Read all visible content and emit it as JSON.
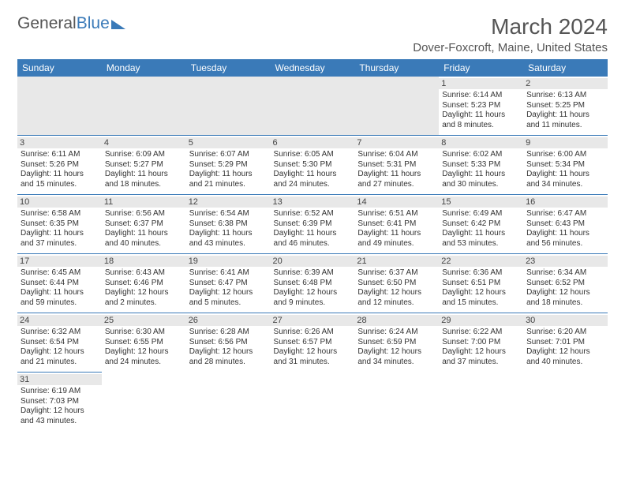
{
  "brand": {
    "part1": "General",
    "part2": "Blue"
  },
  "title": "March 2024",
  "subtitle": "Dover-Foxcroft, Maine, United States",
  "colors": {
    "header_bg": "#3a7ab8",
    "header_text": "#ffffff",
    "cell_border": "#3a7ab8",
    "daynum_bg": "#e8e8e8",
    "text": "#333333"
  },
  "typography": {
    "title_fontsize": 28,
    "subtitle_fontsize": 15,
    "dayheader_fontsize": 12,
    "daynum_fontsize": 11,
    "cell_fontsize": 10
  },
  "day_headers": [
    "Sunday",
    "Monday",
    "Tuesday",
    "Wednesday",
    "Thursday",
    "Friday",
    "Saturday"
  ],
  "weeks": [
    [
      {
        "empty": true
      },
      {
        "empty": true
      },
      {
        "empty": true
      },
      {
        "empty": true
      },
      {
        "empty": true
      },
      {
        "day": "1",
        "sunrise": "Sunrise: 6:14 AM",
        "sunset": "Sunset: 5:23 PM",
        "daylight": "Daylight: 11 hours and 8 minutes."
      },
      {
        "day": "2",
        "sunrise": "Sunrise: 6:13 AM",
        "sunset": "Sunset: 5:25 PM",
        "daylight": "Daylight: 11 hours and 11 minutes."
      }
    ],
    [
      {
        "day": "3",
        "sunrise": "Sunrise: 6:11 AM",
        "sunset": "Sunset: 5:26 PM",
        "daylight": "Daylight: 11 hours and 15 minutes."
      },
      {
        "day": "4",
        "sunrise": "Sunrise: 6:09 AM",
        "sunset": "Sunset: 5:27 PM",
        "daylight": "Daylight: 11 hours and 18 minutes."
      },
      {
        "day": "5",
        "sunrise": "Sunrise: 6:07 AM",
        "sunset": "Sunset: 5:29 PM",
        "daylight": "Daylight: 11 hours and 21 minutes."
      },
      {
        "day": "6",
        "sunrise": "Sunrise: 6:05 AM",
        "sunset": "Sunset: 5:30 PM",
        "daylight": "Daylight: 11 hours and 24 minutes."
      },
      {
        "day": "7",
        "sunrise": "Sunrise: 6:04 AM",
        "sunset": "Sunset: 5:31 PM",
        "daylight": "Daylight: 11 hours and 27 minutes."
      },
      {
        "day": "8",
        "sunrise": "Sunrise: 6:02 AM",
        "sunset": "Sunset: 5:33 PM",
        "daylight": "Daylight: 11 hours and 30 minutes."
      },
      {
        "day": "9",
        "sunrise": "Sunrise: 6:00 AM",
        "sunset": "Sunset: 5:34 PM",
        "daylight": "Daylight: 11 hours and 34 minutes."
      }
    ],
    [
      {
        "day": "10",
        "sunrise": "Sunrise: 6:58 AM",
        "sunset": "Sunset: 6:35 PM",
        "daylight": "Daylight: 11 hours and 37 minutes."
      },
      {
        "day": "11",
        "sunrise": "Sunrise: 6:56 AM",
        "sunset": "Sunset: 6:37 PM",
        "daylight": "Daylight: 11 hours and 40 minutes."
      },
      {
        "day": "12",
        "sunrise": "Sunrise: 6:54 AM",
        "sunset": "Sunset: 6:38 PM",
        "daylight": "Daylight: 11 hours and 43 minutes."
      },
      {
        "day": "13",
        "sunrise": "Sunrise: 6:52 AM",
        "sunset": "Sunset: 6:39 PM",
        "daylight": "Daylight: 11 hours and 46 minutes."
      },
      {
        "day": "14",
        "sunrise": "Sunrise: 6:51 AM",
        "sunset": "Sunset: 6:41 PM",
        "daylight": "Daylight: 11 hours and 49 minutes."
      },
      {
        "day": "15",
        "sunrise": "Sunrise: 6:49 AM",
        "sunset": "Sunset: 6:42 PM",
        "daylight": "Daylight: 11 hours and 53 minutes."
      },
      {
        "day": "16",
        "sunrise": "Sunrise: 6:47 AM",
        "sunset": "Sunset: 6:43 PM",
        "daylight": "Daylight: 11 hours and 56 minutes."
      }
    ],
    [
      {
        "day": "17",
        "sunrise": "Sunrise: 6:45 AM",
        "sunset": "Sunset: 6:44 PM",
        "daylight": "Daylight: 11 hours and 59 minutes."
      },
      {
        "day": "18",
        "sunrise": "Sunrise: 6:43 AM",
        "sunset": "Sunset: 6:46 PM",
        "daylight": "Daylight: 12 hours and 2 minutes."
      },
      {
        "day": "19",
        "sunrise": "Sunrise: 6:41 AM",
        "sunset": "Sunset: 6:47 PM",
        "daylight": "Daylight: 12 hours and 5 minutes."
      },
      {
        "day": "20",
        "sunrise": "Sunrise: 6:39 AM",
        "sunset": "Sunset: 6:48 PM",
        "daylight": "Daylight: 12 hours and 9 minutes."
      },
      {
        "day": "21",
        "sunrise": "Sunrise: 6:37 AM",
        "sunset": "Sunset: 6:50 PM",
        "daylight": "Daylight: 12 hours and 12 minutes."
      },
      {
        "day": "22",
        "sunrise": "Sunrise: 6:36 AM",
        "sunset": "Sunset: 6:51 PM",
        "daylight": "Daylight: 12 hours and 15 minutes."
      },
      {
        "day": "23",
        "sunrise": "Sunrise: 6:34 AM",
        "sunset": "Sunset: 6:52 PM",
        "daylight": "Daylight: 12 hours and 18 minutes."
      }
    ],
    [
      {
        "day": "24",
        "sunrise": "Sunrise: 6:32 AM",
        "sunset": "Sunset: 6:54 PM",
        "daylight": "Daylight: 12 hours and 21 minutes."
      },
      {
        "day": "25",
        "sunrise": "Sunrise: 6:30 AM",
        "sunset": "Sunset: 6:55 PM",
        "daylight": "Daylight: 12 hours and 24 minutes."
      },
      {
        "day": "26",
        "sunrise": "Sunrise: 6:28 AM",
        "sunset": "Sunset: 6:56 PM",
        "daylight": "Daylight: 12 hours and 28 minutes."
      },
      {
        "day": "27",
        "sunrise": "Sunrise: 6:26 AM",
        "sunset": "Sunset: 6:57 PM",
        "daylight": "Daylight: 12 hours and 31 minutes."
      },
      {
        "day": "28",
        "sunrise": "Sunrise: 6:24 AM",
        "sunset": "Sunset: 6:59 PM",
        "daylight": "Daylight: 12 hours and 34 minutes."
      },
      {
        "day": "29",
        "sunrise": "Sunrise: 6:22 AM",
        "sunset": "Sunset: 7:00 PM",
        "daylight": "Daylight: 12 hours and 37 minutes."
      },
      {
        "day": "30",
        "sunrise": "Sunrise: 6:20 AM",
        "sunset": "Sunset: 7:01 PM",
        "daylight": "Daylight: 12 hours and 40 minutes."
      }
    ],
    [
      {
        "day": "31",
        "sunrise": "Sunrise: 6:19 AM",
        "sunset": "Sunset: 7:03 PM",
        "daylight": "Daylight: 12 hours and 43 minutes."
      },
      {
        "empty": true
      },
      {
        "empty": true
      },
      {
        "empty": true
      },
      {
        "empty": true
      },
      {
        "empty": true
      },
      {
        "empty": true
      }
    ]
  ]
}
